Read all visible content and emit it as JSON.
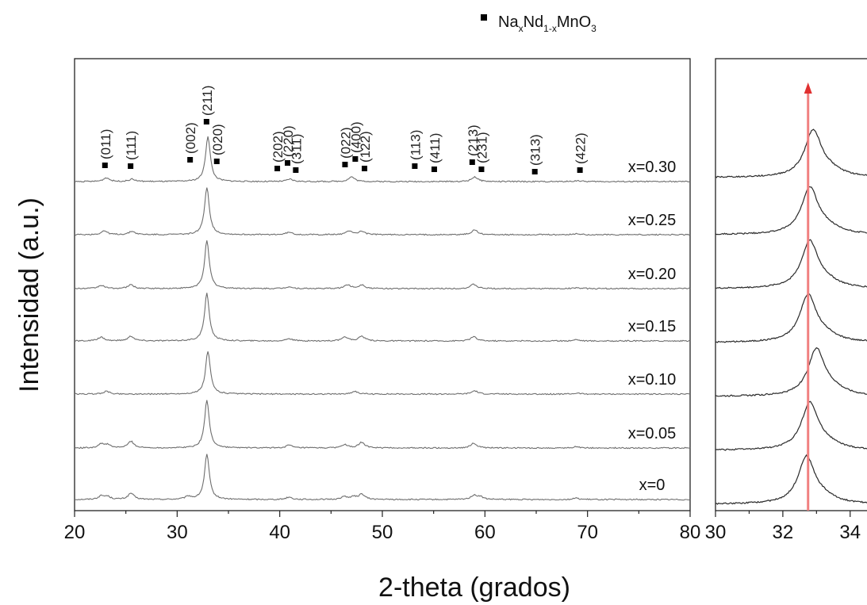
{
  "chart_data": [
    {
      "type": "line",
      "title": "",
      "xlabel": "2-theta (grados)",
      "ylabel": "Intensidad (a.u.)",
      "xlim": [
        20,
        80
      ],
      "x_ticks": [
        20,
        30,
        40,
        50,
        60,
        70,
        80
      ],
      "grid": false,
      "series": [
        {
          "name": "x=0",
          "peaks": [
            {
              "x": 22.6,
              "h": 0.07
            },
            {
              "x": 23.2,
              "h": 0.06
            },
            {
              "x": 25.5,
              "h": 0.13
            },
            {
              "x": 31.1,
              "h": 0.06
            },
            {
              "x": 32.9,
              "h": 0.95
            },
            {
              "x": 40.9,
              "h": 0.05
            },
            {
              "x": 46.3,
              "h": 0.06
            },
            {
              "x": 47.2,
              "h": 0.05
            },
            {
              "x": 48.0,
              "h": 0.11
            },
            {
              "x": 58.9,
              "h": 0.08
            },
            {
              "x": 59.5,
              "h": 0.06
            },
            {
              "x": 68.9,
              "h": 0.03
            }
          ]
        },
        {
          "name": "x=0.05",
          "peaks": [
            {
              "x": 22.6,
              "h": 0.08
            },
            {
              "x": 23.2,
              "h": 0.06
            },
            {
              "x": 25.5,
              "h": 0.14
            },
            {
              "x": 32.9,
              "h": 1.0
            },
            {
              "x": 40.9,
              "h": 0.06
            },
            {
              "x": 46.3,
              "h": 0.07
            },
            {
              "x": 48.0,
              "h": 0.12
            },
            {
              "x": 58.9,
              "h": 0.1
            },
            {
              "x": 68.9,
              "h": 0.03
            }
          ]
        },
        {
          "name": "x=0.10",
          "peaks": [
            {
              "x": 23.1,
              "h": 0.06
            },
            {
              "x": 33.0,
              "h": 0.9
            },
            {
              "x": 47.3,
              "h": 0.06
            },
            {
              "x": 59.0,
              "h": 0.07
            },
            {
              "x": 69.0,
              "h": 0.02
            }
          ]
        },
        {
          "name": "x=0.15",
          "peaks": [
            {
              "x": 22.6,
              "h": 0.08
            },
            {
              "x": 25.5,
              "h": 0.1
            },
            {
              "x": 32.9,
              "h": 1.0
            },
            {
              "x": 40.9,
              "h": 0.05
            },
            {
              "x": 46.4,
              "h": 0.08
            },
            {
              "x": 48.0,
              "h": 0.1
            },
            {
              "x": 58.9,
              "h": 0.09
            },
            {
              "x": 68.9,
              "h": 0.03
            }
          ]
        },
        {
          "name": "x=0.20",
          "peaks": [
            {
              "x": 22.6,
              "h": 0.07
            },
            {
              "x": 25.5,
              "h": 0.08
            },
            {
              "x": 32.9,
              "h": 1.0
            },
            {
              "x": 40.9,
              "h": 0.04
            },
            {
              "x": 46.6,
              "h": 0.08
            },
            {
              "x": 48.0,
              "h": 0.08
            },
            {
              "x": 58.9,
              "h": 0.09
            },
            {
              "x": 68.9,
              "h": 0.02
            }
          ]
        },
        {
          "name": "x=0.25",
          "peaks": [
            {
              "x": 22.9,
              "h": 0.08
            },
            {
              "x": 25.6,
              "h": 0.07
            },
            {
              "x": 32.9,
              "h": 1.0
            },
            {
              "x": 40.9,
              "h": 0.05
            },
            {
              "x": 46.8,
              "h": 0.08
            },
            {
              "x": 48.0,
              "h": 0.07
            },
            {
              "x": 59.0,
              "h": 0.1
            },
            {
              "x": 69.0,
              "h": 0.02
            }
          ]
        },
        {
          "name": "x=0.30",
          "peaks": [
            {
              "x": 23.1,
              "h": 0.08
            },
            {
              "x": 25.6,
              "h": 0.05
            },
            {
              "x": 33.0,
              "h": 0.95
            },
            {
              "x": 41.0,
              "h": 0.05
            },
            {
              "x": 47.0,
              "h": 0.1
            },
            {
              "x": 59.0,
              "h": 0.1
            },
            {
              "x": 69.0,
              "h": 0.02
            }
          ]
        }
      ],
      "legend": {
        "position": "top-right",
        "entries": [
          {
            "marker": "square",
            "text": "NaxNd1-xMnO3"
          }
        ]
      },
      "annotations": [
        {
          "label": "(011)",
          "x": 23.0
        },
        {
          "label": "(111)",
          "x": 25.5
        },
        {
          "label": "(002)",
          "x": 31.3
        },
        {
          "label": "(211)",
          "x": 32.9
        },
        {
          "label": "(020)",
          "x": 33.9
        },
        {
          "label": "(202)",
          "x": 39.8
        },
        {
          "label": "(220)",
          "x": 40.8
        },
        {
          "label": "(311)",
          "x": 41.6
        },
        {
          "label": "(022)",
          "x": 46.4
        },
        {
          "label": "(400)",
          "x": 47.4
        },
        {
          "label": "(122)",
          "x": 48.3
        },
        {
          "label": "(113)",
          "x": 53.2
        },
        {
          "label": "(411)",
          "x": 55.1
        },
        {
          "label": "(213)",
          "x": 58.8
        },
        {
          "label": "(231)",
          "x": 59.7
        },
        {
          "label": "(313)",
          "x": 64.9
        },
        {
          "label": "(422)",
          "x": 69.3
        }
      ]
    },
    {
      "type": "line",
      "title": "",
      "xlabel": "",
      "ylabel": "",
      "xlim": [
        30,
        34.5
      ],
      "x_ticks": [
        30,
        32,
        34
      ],
      "grid": false,
      "reference_line": {
        "x": 32.75,
        "color": "#f08080",
        "arrow": "up"
      },
      "series_peaks": [
        32.7,
        32.8,
        33.0,
        32.75,
        32.8,
        32.8,
        32.9
      ]
    }
  ],
  "legend": {
    "prefix": "Na",
    "sub1": "x",
    "mid": "Nd",
    "sub2": "1-x",
    "suffix": "MnO",
    "sub3": "3"
  },
  "axes": {
    "xlabel": "2-theta (grados)",
    "ylabel": "Intensidad (a.u.)"
  },
  "colors": {
    "main_curve": "#6e6e6e",
    "zoom_curve": "#2a2a2a",
    "reference_line": "#f08080"
  }
}
